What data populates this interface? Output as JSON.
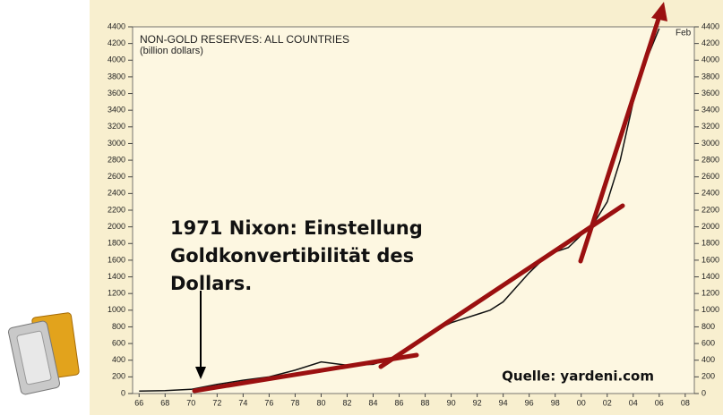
{
  "chart_data": {
    "type": "line",
    "title": "NON-GOLD RESERVES: ALL COUNTRIES",
    "subtitle": "(billion dollars)",
    "annotations": [
      "1971 Nixon: Einstellung",
      "Goldkonvertibilität des",
      "Dollars."
    ],
    "source": "Quelle: yardeni.com",
    "end_label": "Feb",
    "series": [
      {
        "name": "Non-gold reserves",
        "color": "#111111",
        "x": [
          1966,
          1968,
          1970,
          1972,
          1974,
          1976,
          1978,
          1980,
          1981,
          1982,
          1984,
          1986,
          1988,
          1990,
          1992,
          1993,
          1994,
          1996,
          1997,
          1998,
          1999,
          2000,
          2001,
          2002,
          2003,
          2004,
          2005,
          2006
        ],
        "values": [
          30,
          35,
          50,
          110,
          160,
          200,
          280,
          380,
          360,
          340,
          350,
          450,
          700,
          850,
          950,
          1000,
          1100,
          1450,
          1600,
          1700,
          1750,
          1900,
          2050,
          2300,
          2800,
          3500,
          4000,
          4380
        ]
      }
    ],
    "xlim": [
      1965.5,
      2008.7
    ],
    "xticks": [
      {
        "value": 1966,
        "label": "66"
      },
      {
        "value": 1968,
        "label": "68"
      },
      {
        "value": 1970,
        "label": "70"
      },
      {
        "value": 1972,
        "label": "72"
      },
      {
        "value": 1974,
        "label": "74"
      },
      {
        "value": 1976,
        "label": "76"
      },
      {
        "value": 1978,
        "label": "78"
      },
      {
        "value": 1980,
        "label": "80"
      },
      {
        "value": 1982,
        "label": "82"
      },
      {
        "value": 1984,
        "label": "84"
      },
      {
        "value": 1986,
        "label": "86"
      },
      {
        "value": 1988,
        "label": "88"
      },
      {
        "value": 1990,
        "label": "90"
      },
      {
        "value": 1992,
        "label": "92"
      },
      {
        "value": 1994,
        "label": "94"
      },
      {
        "value": 1996,
        "label": "96"
      },
      {
        "value": 1998,
        "label": "98"
      },
      {
        "value": 2000,
        "label": "00"
      },
      {
        "value": 2002,
        "label": "02"
      },
      {
        "value": 2004,
        "label": "04"
      },
      {
        "value": 2006,
        "label": "06"
      },
      {
        "value": 2008,
        "label": "08"
      }
    ],
    "ylim": [
      0,
      4400
    ],
    "yticks": [
      0,
      200,
      400,
      600,
      800,
      1000,
      1200,
      1400,
      1600,
      1800,
      2000,
      2200,
      2400,
      2600,
      2800,
      3000,
      3200,
      3400,
      3600,
      3800,
      4000,
      4200,
      4400
    ],
    "grid": false
  }
}
